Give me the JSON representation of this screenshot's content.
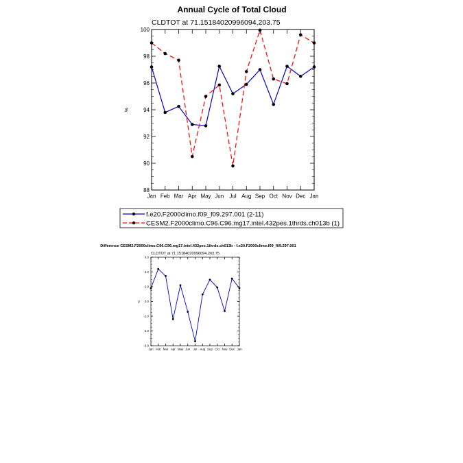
{
  "chart_data": [
    {
      "type": "line",
      "title": "Annual Cycle of Total Cloud",
      "subtitle": "CLDTOT at 71.15184020996094,203.75",
      "xlabel": "",
      "ylabel": "%",
      "ylim": [
        88,
        100
      ],
      "yticks": [
        "88",
        "90",
        "92",
        "94",
        "96",
        "98",
        "100"
      ],
      "categories": [
        "Jan",
        "Feb",
        "Mar",
        "Apr",
        "May",
        "Jun",
        "Jul",
        "Aug",
        "Sep",
        "Oct",
        "Nov",
        "Dec",
        "Jan"
      ],
      "series": [
        {
          "name": "f.e20.F2000climo.f09_f09.297.001 (2-11)",
          "color": "#0000cc",
          "style": "solid",
          "values": [
            97.2,
            93.8,
            94.25,
            92.9,
            92.8,
            97.25,
            95.2,
            95.9,
            97.0,
            94.4,
            97.25,
            96.5,
            97.2
          ]
        },
        {
          "name": "CESM2.F2000climo.C96.C96.mg17.intel.432pes.1thrds.ch013b (1)",
          "color": "#ff0000",
          "style": "dashed",
          "values": [
            99.0,
            98.2,
            97.7,
            90.5,
            95.0,
            95.85,
            89.8,
            96.85,
            99.95,
            96.3,
            95.95,
            99.6,
            99.0
          ]
        }
      ]
    },
    {
      "type": "line",
      "title": "Difference CESM2.F2000climo.C96.C96.mg17.intel.432pes.1thrds.ch013b - f.e20.F2000climo.f09_f09.297.001",
      "subtitle": "CLDTOT at 71.15184020996094,203.75",
      "xlabel": "",
      "ylabel": "%",
      "ylim": [
        -6,
        6
      ],
      "yticks": [
        "-6.0",
        "-4.0",
        "-2.0",
        "0.0",
        "2.0",
        "4.0",
        "6.0"
      ],
      "categories": [
        "Jan",
        "Feb",
        "Mar",
        "Apr",
        "May",
        "Jun",
        "Jul",
        "Aug",
        "Sep",
        "Oct",
        "Nov",
        "Dec",
        "Jan"
      ],
      "series": [
        {
          "name": "Difference",
          "color": "#0000cc",
          "style": "solid",
          "values": [
            1.8,
            4.4,
            3.45,
            -2.4,
            2.2,
            -1.4,
            -5.4,
            0.95,
            2.95,
            1.9,
            -1.3,
            3.1,
            1.8
          ]
        }
      ]
    }
  ]
}
